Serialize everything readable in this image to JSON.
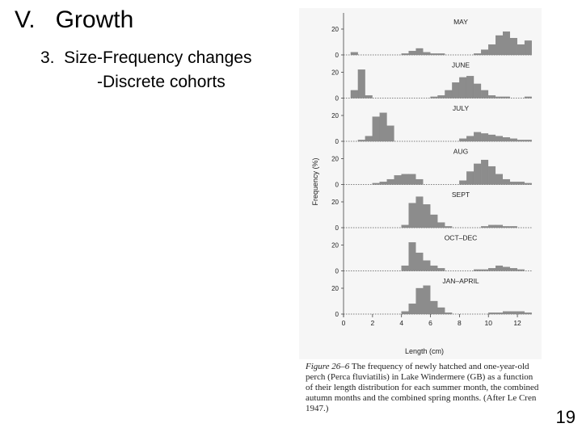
{
  "slide": {
    "title": "V.   Growth",
    "subtitle_line1": "3.  Size-Frequency changes",
    "subtitle_line2": "-Discrete cohorts",
    "page_number": "19"
  },
  "figure": {
    "caption_label": "Figure 26–6",
    "caption_text": "The frequency of newly hatched and one-year-old perch (Perca fluviatilis) in Lake Windermere (GB) as a function of their length distribution for each summer month, the combined autumn months and the combined spring months. (After Le Cren 1947.)"
  },
  "chart_data": {
    "type": "bar",
    "xlabel": "Length (cm)",
    "ylabel": "Frequency (%)",
    "xlim": [
      0,
      13
    ],
    "xticks": [
      0,
      2,
      4,
      6,
      8,
      10,
      12
    ],
    "ylim": [
      0,
      25
    ],
    "yticks": [
      0,
      20
    ],
    "bin_width": 0.5,
    "panels": [
      {
        "label": "MAY",
        "bins": [
          {
            "x": 0.5,
            "y": 2
          },
          {
            "x": 4.0,
            "y": 1
          },
          {
            "x": 4.5,
            "y": 3
          },
          {
            "x": 5.0,
            "y": 5
          },
          {
            "x": 5.5,
            "y": 2
          },
          {
            "x": 6.0,
            "y": 1
          },
          {
            "x": 6.5,
            "y": 1
          },
          {
            "x": 9.0,
            "y": 1
          },
          {
            "x": 9.5,
            "y": 4
          },
          {
            "x": 10.0,
            "y": 8
          },
          {
            "x": 10.5,
            "y": 15
          },
          {
            "x": 11.0,
            "y": 18
          },
          {
            "x": 11.5,
            "y": 13
          },
          {
            "x": 12.0,
            "y": 8
          },
          {
            "x": 12.5,
            "y": 11
          }
        ]
      },
      {
        "label": "JUNE",
        "bins": [
          {
            "x": 0.5,
            "y": 6
          },
          {
            "x": 1.0,
            "y": 22
          },
          {
            "x": 1.5,
            "y": 2
          },
          {
            "x": 6.0,
            "y": 1
          },
          {
            "x": 6.5,
            "y": 2
          },
          {
            "x": 7.0,
            "y": 6
          },
          {
            "x": 7.5,
            "y": 12
          },
          {
            "x": 8.0,
            "y": 16
          },
          {
            "x": 8.5,
            "y": 17
          },
          {
            "x": 9.0,
            "y": 11
          },
          {
            "x": 9.5,
            "y": 6
          },
          {
            "x": 10.0,
            "y": 2
          },
          {
            "x": 10.5,
            "y": 1
          },
          {
            "x": 11.0,
            "y": 1
          },
          {
            "x": 12.5,
            "y": 1
          }
        ]
      },
      {
        "label": "JULY",
        "bins": [
          {
            "x": 1.0,
            "y": 1
          },
          {
            "x": 1.5,
            "y": 4
          },
          {
            "x": 2.0,
            "y": 19
          },
          {
            "x": 2.5,
            "y": 22
          },
          {
            "x": 3.0,
            "y": 12
          },
          {
            "x": 8.0,
            "y": 2
          },
          {
            "x": 8.5,
            "y": 4
          },
          {
            "x": 9.0,
            "y": 7
          },
          {
            "x": 9.5,
            "y": 6
          },
          {
            "x": 10.0,
            "y": 5
          },
          {
            "x": 10.5,
            "y": 4
          },
          {
            "x": 11.0,
            "y": 3
          },
          {
            "x": 11.5,
            "y": 2
          },
          {
            "x": 12.0,
            "y": 1
          },
          {
            "x": 12.5,
            "y": 1
          }
        ]
      },
      {
        "label": "AUG",
        "bins": [
          {
            "x": 2.0,
            "y": 1
          },
          {
            "x": 2.5,
            "y": 2
          },
          {
            "x": 3.0,
            "y": 4
          },
          {
            "x": 3.5,
            "y": 7
          },
          {
            "x": 4.0,
            "y": 8
          },
          {
            "x": 4.5,
            "y": 8
          },
          {
            "x": 5.0,
            "y": 4
          },
          {
            "x": 8.0,
            "y": 3
          },
          {
            "x": 8.5,
            "y": 10
          },
          {
            "x": 9.0,
            "y": 16
          },
          {
            "x": 9.5,
            "y": 19
          },
          {
            "x": 10.0,
            "y": 14
          },
          {
            "x": 10.5,
            "y": 8
          },
          {
            "x": 11.0,
            "y": 4
          },
          {
            "x": 11.5,
            "y": 2
          },
          {
            "x": 12.0,
            "y": 2
          },
          {
            "x": 12.5,
            "y": 1
          }
        ]
      },
      {
        "label": "SEPT",
        "bins": [
          {
            "x": 4.0,
            "y": 2
          },
          {
            "x": 4.5,
            "y": 19
          },
          {
            "x": 5.0,
            "y": 24
          },
          {
            "x": 5.5,
            "y": 18
          },
          {
            "x": 6.0,
            "y": 10
          },
          {
            "x": 6.5,
            "y": 4
          },
          {
            "x": 7.0,
            "y": 1
          },
          {
            "x": 9.5,
            "y": 1
          },
          {
            "x": 10.0,
            "y": 2
          },
          {
            "x": 10.5,
            "y": 2
          },
          {
            "x": 11.0,
            "y": 1
          },
          {
            "x": 11.5,
            "y": 1
          }
        ]
      },
      {
        "label": "OCT–DEC",
        "bins": [
          {
            "x": 4.0,
            "y": 4
          },
          {
            "x": 4.5,
            "y": 22
          },
          {
            "x": 5.0,
            "y": 14
          },
          {
            "x": 5.5,
            "y": 8
          },
          {
            "x": 6.0,
            "y": 4
          },
          {
            "x": 6.5,
            "y": 2
          },
          {
            "x": 9.0,
            "y": 1
          },
          {
            "x": 9.5,
            "y": 1
          },
          {
            "x": 10.0,
            "y": 2
          },
          {
            "x": 10.5,
            "y": 4
          },
          {
            "x": 11.0,
            "y": 3
          },
          {
            "x": 11.5,
            "y": 2
          },
          {
            "x": 12.0,
            "y": 1
          }
        ]
      },
      {
        "label": "JAN–APRIL",
        "bins": [
          {
            "x": 4.0,
            "y": 2
          },
          {
            "x": 4.5,
            "y": 8
          },
          {
            "x": 5.0,
            "y": 20
          },
          {
            "x": 5.5,
            "y": 22
          },
          {
            "x": 6.0,
            "y": 10
          },
          {
            "x": 6.5,
            "y": 5
          },
          {
            "x": 7.0,
            "y": 1
          },
          {
            "x": 10.0,
            "y": 1
          },
          {
            "x": 10.5,
            "y": 1
          },
          {
            "x": 11.0,
            "y": 2
          },
          {
            "x": 11.5,
            "y": 2
          },
          {
            "x": 12.0,
            "y": 2
          },
          {
            "x": 12.5,
            "y": 1
          }
        ]
      }
    ]
  }
}
